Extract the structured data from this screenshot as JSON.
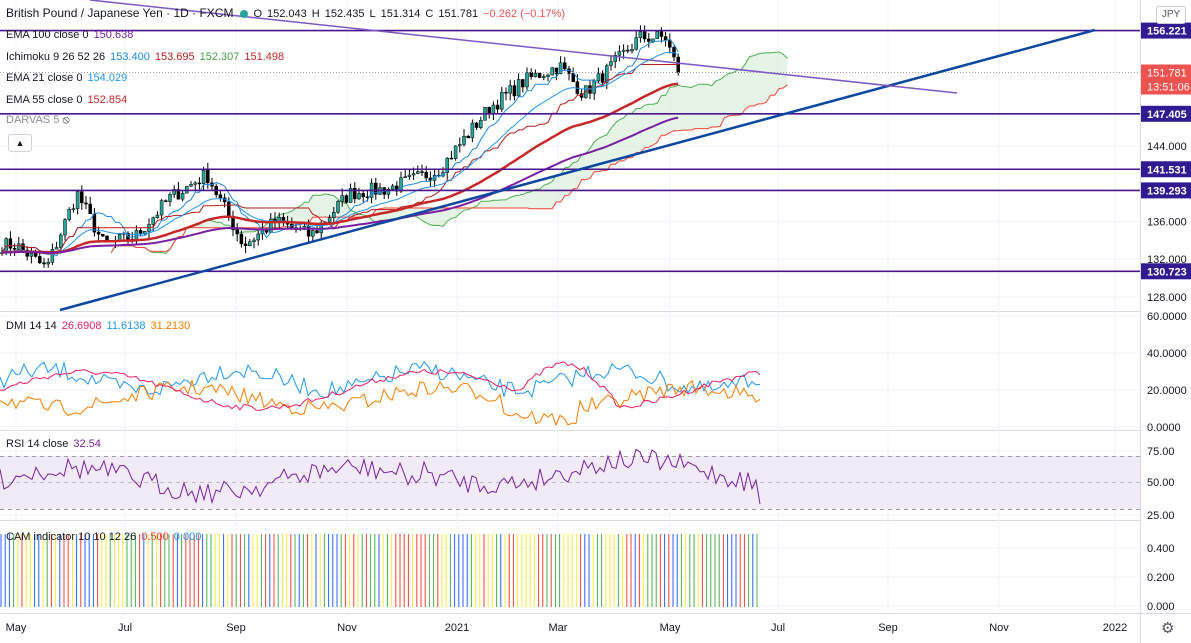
{
  "header": {
    "title": "British Pound / Japanese Yen · 1D · FXCM",
    "ohlc": [
      {
        "label": "O",
        "value": "152.043"
      },
      {
        "label": "H",
        "value": "152.435"
      },
      {
        "label": "L",
        "value": "151.314"
      },
      {
        "label": "C",
        "value": "151.781"
      }
    ],
    "change": "−0.262 (−0.17%)",
    "currency": "JPY"
  },
  "indicators": {
    "ema100": {
      "name": "EMA 100 close 0",
      "value": "150.638"
    },
    "ichimoku": {
      "name": "Ichimoku 9 26 52 26",
      "values": [
        "153.400",
        "153.695",
        "152.307",
        "151.498"
      ]
    },
    "ema21": {
      "name": "EMA 21 close 0",
      "value": "154.029"
    },
    "ema55": {
      "name": "EMA 55 close 0",
      "value": "152.854"
    },
    "darvas": {
      "name": "DARVAS 5"
    }
  },
  "price_axis": {
    "ticks": [
      "128.000",
      "132.000",
      "136.000",
      "144.000"
    ],
    "levels": [
      {
        "value": "156.221",
        "price": 156.221
      },
      {
        "value": "147.405",
        "price": 147.405
      },
      {
        "value": "141.531",
        "price": 141.531
      },
      {
        "value": "139.293",
        "price": 139.293
      },
      {
        "value": "130.723",
        "price": 130.723
      }
    ],
    "last": {
      "value": "151.781",
      "countdown": "13:51:06",
      "price": 151.781
    }
  },
  "dmi": {
    "name": "DMI 14 14",
    "values": [
      "26.6908",
      "11.6138",
      "31.2130"
    ],
    "ticks": [
      "60.0000",
      "40.0000",
      "20.0000",
      "0.0000"
    ]
  },
  "rsi": {
    "name": "RSI 14 close",
    "value": "32.54",
    "ticks": [
      "75.00",
      "50.00",
      "25.00"
    ]
  },
  "cam": {
    "name": "CAM indicator 10 10 12 26",
    "values": [
      "0.500",
      "0.000"
    ],
    "ticks": [
      "0.400",
      "0.200",
      "0.000"
    ]
  },
  "time_axis": {
    "labels": [
      "May",
      "Jul",
      "Sep",
      "Nov",
      "2021",
      "Mar",
      "May",
      "Jul",
      "Sep",
      "Nov",
      "2022"
    ]
  },
  "colors": {
    "price_line": "#0d47a1",
    "level_line": "#4a148c",
    "trendline": "#7e57c2",
    "ema100": "#7b1fa2",
    "ema55": "#c62828",
    "ema21": "#2196f3",
    "tenkan": "#1e88e5",
    "kijun": "#b71c1c",
    "span_a": "#4caf50",
    "span_b": "#f44336",
    "dmi_plus": "#2196f3",
    "dmi_minus": "#f57c00",
    "adx": "#e91e63",
    "rsi": "#7b1fa2",
    "cam_colors": [
      "#4caf50",
      "#f44336",
      "#2962ff",
      "#ffeb3b"
    ]
  },
  "chart_data": {
    "type": "candlestick",
    "x_range": [
      "2020-05",
      "2022-02"
    ],
    "y_range": [
      126,
      158
    ],
    "close_path": [
      [
        "2020-05-01",
        133.5
      ],
      [
        "2020-05-20",
        131.0
      ],
      [
        "2020-06-08",
        139.0
      ],
      [
        "2020-06-25",
        133.5
      ],
      [
        "2020-07-15",
        134.5
      ],
      [
        "2020-08-05",
        138.5
      ],
      [
        "2020-08-28",
        141.0
      ],
      [
        "2020-09-20",
        133.5
      ],
      [
        "2020-10-10",
        136.0
      ],
      [
        "2020-11-01",
        134.5
      ],
      [
        "2020-11-25",
        139.0
      ],
      [
        "2020-12-20",
        139.5
      ],
      [
        "2021-01-20",
        141.5
      ],
      [
        "2021-02-20",
        148.0
      ],
      [
        "2021-03-15",
        151.0
      ],
      [
        "2021-04-05",
        152.5
      ],
      [
        "2021-04-20",
        149.5
      ],
      [
        "2021-05-05",
        152.0
      ],
      [
        "2021-05-25",
        155.5
      ],
      [
        "2021-06-10",
        155.5
      ],
      [
        "2021-06-18",
        151.8
      ]
    ]
  }
}
